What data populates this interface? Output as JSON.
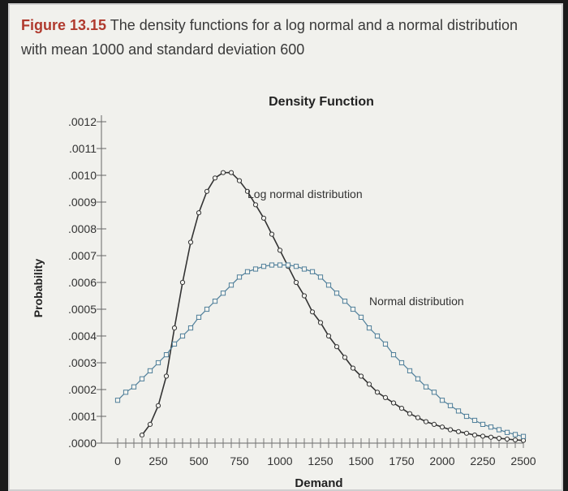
{
  "caption": {
    "figure_label": "Figure 13.15",
    "text": "The density functions for a log normal and a normal distribution with mean 1000 and standard deviation 600"
  },
  "chart_data": {
    "type": "line",
    "title": "Density Function",
    "xlabel": "Demand",
    "ylabel": "Probability",
    "xlim": [
      0,
      2500
    ],
    "ylim": [
      0,
      0.0012
    ],
    "x_ticks": [
      "0",
      "250",
      "500",
      "750",
      "1000",
      "1250",
      "1500",
      "1750",
      "2000",
      "2250",
      "2500"
    ],
    "y_ticks": [
      ".0000",
      ".0001",
      ".0002",
      ".0003",
      ".0004",
      ".0005",
      ".0006",
      ".0007",
      ".0008",
      ".0009",
      ".0010",
      ".0011",
      ".0012"
    ],
    "grid": false,
    "series": [
      {
        "name": "Log normal distribution",
        "marker": "circle",
        "color": "#333333",
        "x": [
          150,
          200,
          250,
          300,
          350,
          400,
          450,
          500,
          550,
          600,
          650,
          700,
          750,
          800,
          850,
          900,
          950,
          1000,
          1050,
          1100,
          1150,
          1200,
          1250,
          1300,
          1350,
          1400,
          1450,
          1500,
          1550,
          1600,
          1650,
          1700,
          1750,
          1800,
          1850,
          1900,
          1950,
          2000,
          2050,
          2100,
          2150,
          2200,
          2250,
          2300,
          2350,
          2400,
          2450,
          2500
        ],
        "y": [
          3e-05,
          7e-05,
          0.00014,
          0.00025,
          0.00043,
          0.0006,
          0.00075,
          0.00086,
          0.00094,
          0.00099,
          0.00101,
          0.00101,
          0.00098,
          0.00094,
          0.00089,
          0.00084,
          0.00078,
          0.00072,
          0.00066,
          0.0006,
          0.00055,
          0.00049,
          0.00045,
          0.0004,
          0.00036,
          0.00032,
          0.00028,
          0.00025,
          0.00022,
          0.00019,
          0.00017,
          0.00015,
          0.00013,
          0.00011,
          9.5e-05,
          8e-05,
          7e-05,
          6e-05,
          5e-05,
          4.3e-05,
          3.7e-05,
          3e-05,
          2.6e-05,
          2.2e-05,
          1.8e-05,
          1.5e-05,
          1.2e-05,
          1e-05
        ]
      },
      {
        "name": "Normal distribution",
        "marker": "square",
        "color": "#4f7f9a",
        "x": [
          0,
          50,
          100,
          150,
          200,
          250,
          300,
          350,
          400,
          450,
          500,
          550,
          600,
          650,
          700,
          750,
          800,
          850,
          900,
          950,
          1000,
          1050,
          1100,
          1150,
          1200,
          1250,
          1300,
          1350,
          1400,
          1450,
          1500,
          1550,
          1600,
          1650,
          1700,
          1750,
          1800,
          1850,
          1900,
          1950,
          2000,
          2050,
          2100,
          2150,
          2200,
          2250,
          2300,
          2350,
          2400,
          2450,
          2500
        ],
        "y": [
          0.00016,
          0.00019,
          0.00021,
          0.00024,
          0.00027,
          0.0003,
          0.00033,
          0.00037,
          0.0004,
          0.00043,
          0.00047,
          0.0005,
          0.00053,
          0.00056,
          0.00059,
          0.00062,
          0.00064,
          0.00065,
          0.00066,
          0.000665,
          0.000665,
          0.000665,
          0.00066,
          0.00065,
          0.00064,
          0.00062,
          0.00059,
          0.00056,
          0.00053,
          0.0005,
          0.00047,
          0.00043,
          0.0004,
          0.00037,
          0.00033,
          0.0003,
          0.00027,
          0.00024,
          0.00021,
          0.00019,
          0.00016,
          0.00014,
          0.00012,
          0.0001,
          8.5e-05,
          7e-05,
          6e-05,
          5e-05,
          4e-05,
          3.2e-05,
          2.5e-05
        ]
      }
    ],
    "annotations": [
      {
        "text": "Log normal distribution",
        "series": "Log normal distribution"
      },
      {
        "text": "Normal distribution",
        "series": "Normal distribution"
      }
    ]
  }
}
